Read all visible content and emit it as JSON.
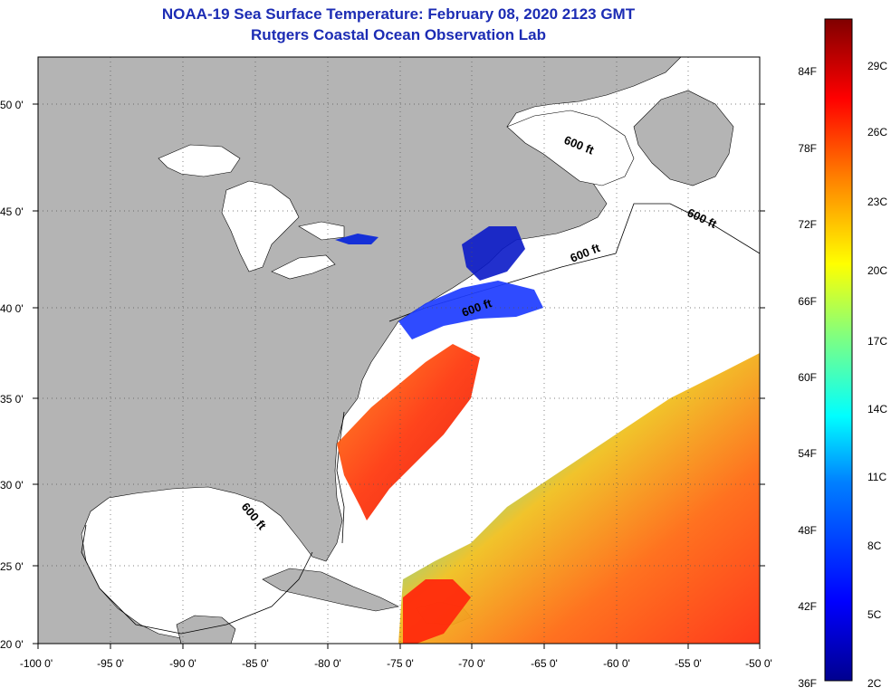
{
  "header": {
    "title": "NOAA-19 Sea Surface Temperature:  February 08, 2020 2123 GMT",
    "subtitle": "Rutgers Coastal Ocean Observation Lab"
  },
  "map": {
    "lon_range": [
      -100,
      -50
    ],
    "lat_range": [
      20,
      52.5
    ],
    "lon_ticks": [
      "-100 0'",
      "-95 0'",
      "-90 0'",
      "-85 0'",
      "-80 0'",
      "-75 0'",
      "-70 0'",
      "-65 0'",
      "-60 0'",
      "-55 0'",
      "-50 0'"
    ],
    "lat_ticks": [
      "50 0'",
      "45 0'",
      "40 0'",
      "35 0'",
      "30 0'",
      "25 0'",
      "20 0'"
    ],
    "contour_labels": [
      "600 ft",
      "600 ft",
      "600 ft",
      "600 ft",
      "600 ft"
    ],
    "land_color": "#b4b4b4",
    "water_color": "#ffffff",
    "grid": "dotted"
  },
  "colorbar": {
    "fahrenheit_labels": [
      "84F",
      "78F",
      "72F",
      "66F",
      "60F",
      "54F",
      "48F",
      "42F",
      "36F"
    ],
    "celsius_labels": [
      "29C",
      "26C",
      "23C",
      "20C",
      "17C",
      "14C",
      "11C",
      "8C",
      "5C",
      "2C"
    ],
    "colors": [
      "#00008f",
      "#0000ff",
      "#0080ff",
      "#00ffff",
      "#80ff80",
      "#ffff00",
      "#ff8000",
      "#ff0000",
      "#800000"
    ]
  }
}
